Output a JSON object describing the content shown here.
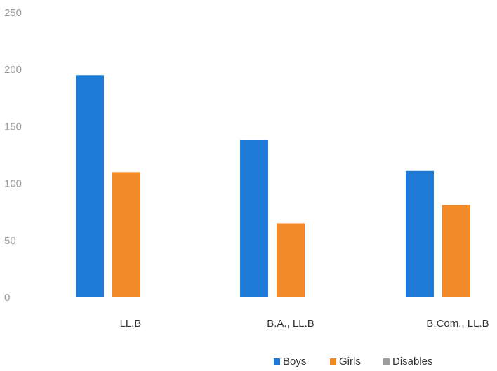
{
  "chart_data": {
    "type": "bar",
    "categories": [
      "LL.B",
      "B.A., LL.B",
      "B.Com., LL.B"
    ],
    "series": [
      {
        "name": "Boys",
        "color": "#1e7ad4",
        "values": [
          195,
          138,
          111
        ]
      },
      {
        "name": "Girls",
        "color": "#f28a2a",
        "values": [
          110,
          65,
          81
        ]
      },
      {
        "name": "Disables",
        "color": "#9e9e9e",
        "values": [
          0,
          0,
          0
        ]
      }
    ],
    "yticks": [
      "0",
      "50",
      "100",
      "150",
      "200",
      "250"
    ],
    "ylim": [
      0,
      250
    ],
    "grid": false,
    "legend": "bottom-right"
  }
}
